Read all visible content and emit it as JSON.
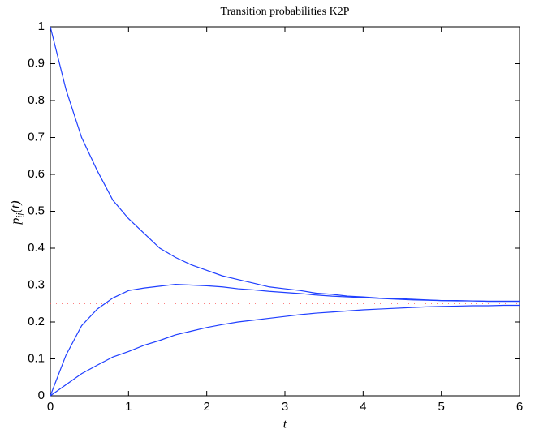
{
  "chart_data": {
    "type": "line",
    "title": "Transition probabilities K2P",
    "x_label": "t",
    "y_label": {
      "base": "p",
      "sub": "ij",
      "arg": "(t)"
    },
    "x": [
      0,
      0.2,
      0.4,
      0.6,
      0.8,
      1.0,
      1.2,
      1.4,
      1.6,
      1.8,
      2.0,
      2.2,
      2.4,
      2.6,
      2.8,
      3.0,
      3.2,
      3.4,
      3.6,
      3.8,
      4.0,
      4.2,
      4.4,
      4.6,
      4.8,
      5.0,
      5.2,
      5.4,
      5.6,
      5.8,
      6.0
    ],
    "series": [
      {
        "color": "#1f3fff",
        "values": [
          1,
          0.83,
          0.7,
          0.61,
          0.53,
          0.48,
          0.44,
          0.4,
          0.375,
          0.355,
          0.34,
          0.325,
          0.315,
          0.305,
          0.295,
          0.29,
          0.285,
          0.278,
          0.275,
          0.27,
          0.268,
          0.265,
          0.264,
          0.262,
          0.26,
          0.258,
          0.258,
          0.257,
          0.256,
          0.256,
          0.256
        ]
      },
      {
        "color": "#1f3fff",
        "values": [
          0,
          0.11,
          0.19,
          0.235,
          0.265,
          0.285,
          0.292,
          0.297,
          0.302,
          0.3,
          0.298,
          0.295,
          0.29,
          0.287,
          0.283,
          0.28,
          0.277,
          0.273,
          0.27,
          0.268,
          0.266,
          0.264,
          0.262,
          0.26,
          0.259,
          0.258,
          0.257,
          0.257,
          0.256,
          0.256,
          0.256
        ]
      },
      {
        "color": "#1f3fff",
        "values": [
          0,
          0.03,
          0.06,
          0.083,
          0.105,
          0.12,
          0.137,
          0.15,
          0.165,
          0.175,
          0.185,
          0.193,
          0.2,
          0.205,
          0.21,
          0.215,
          0.22,
          0.224,
          0.227,
          0.23,
          0.233,
          0.235,
          0.237,
          0.239,
          0.241,
          0.242,
          0.243,
          0.244,
          0.244,
          0.245,
          0.245
        ]
      }
    ],
    "hline": {
      "value": 0.25,
      "color": "#ff5555",
      "style": "dotted"
    },
    "xlim": [
      0,
      6
    ],
    "xticks": [
      0,
      1,
      2,
      3,
      4,
      5,
      6
    ],
    "ylim": [
      0,
      1
    ],
    "yticks": [
      0,
      0.1,
      0.2,
      0.3,
      0.4,
      0.5,
      0.6,
      0.7,
      0.8,
      0.9,
      1
    ]
  }
}
